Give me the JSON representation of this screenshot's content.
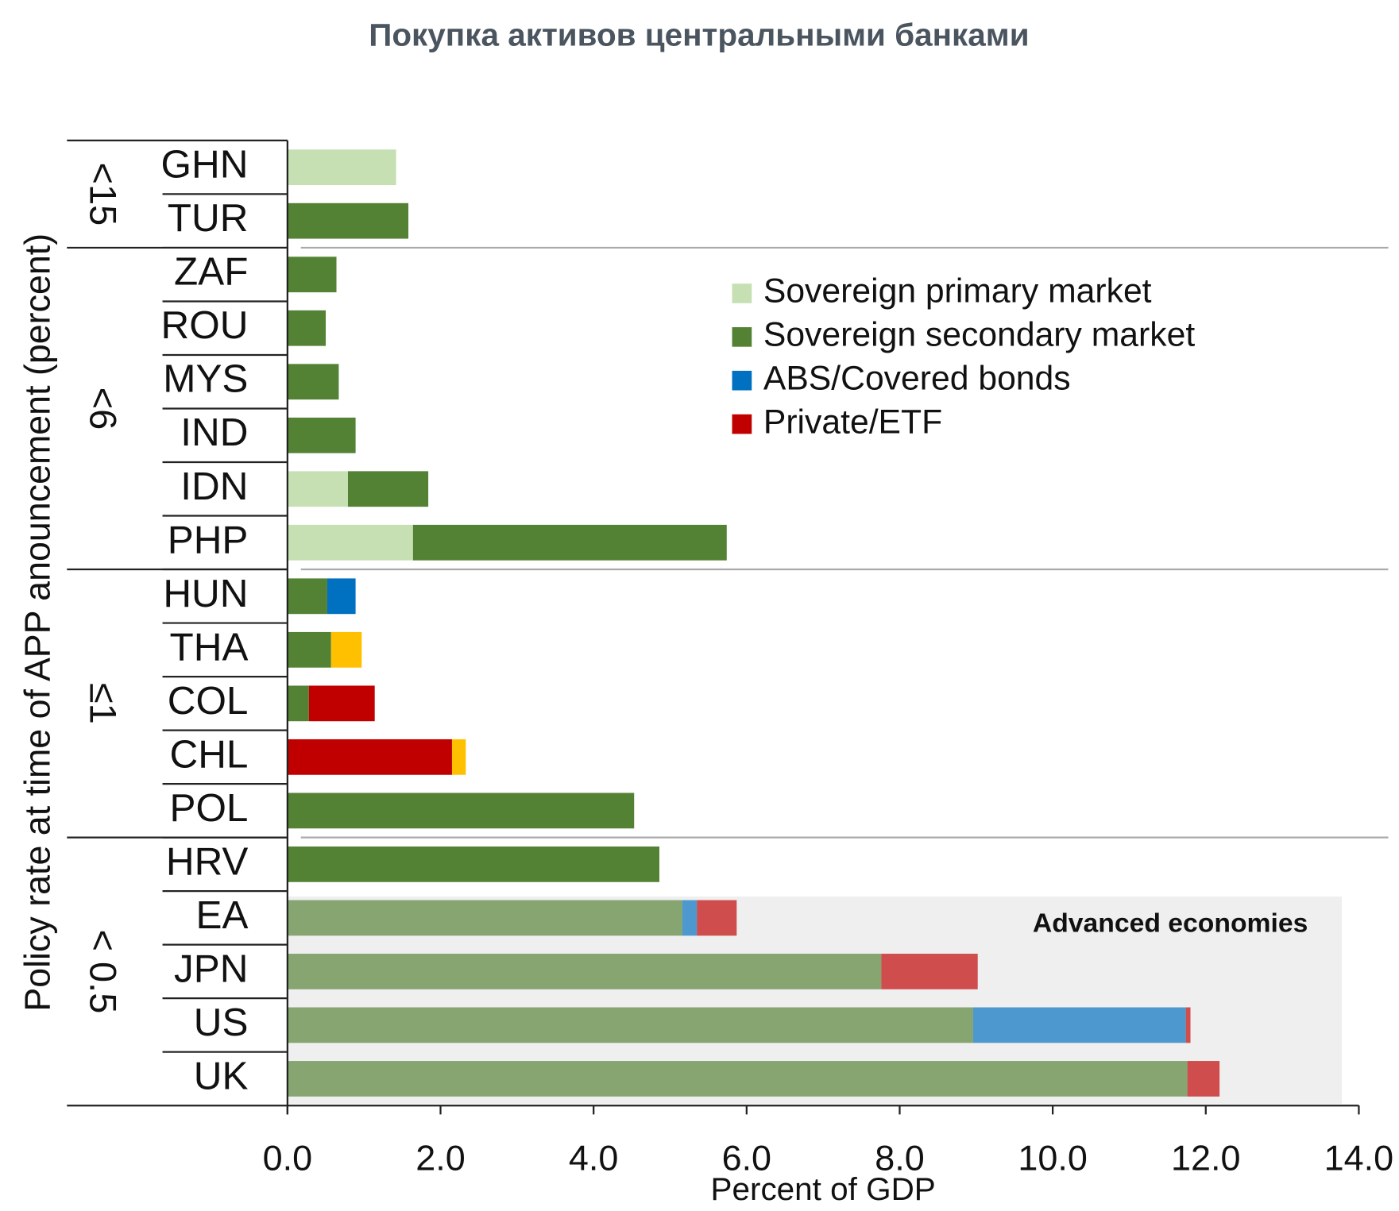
{
  "chart_data": {
    "type": "stacked_barh",
    "title": "Покупка активов центральными банками",
    "xlabel": "Percent of GDP",
    "ylabel": "Policy rate at time of APP anouncement (percent)",
    "annotation": "Advanced economies",
    "shaded_from_index": 14,
    "categories": [
      "GHN",
      "TUR",
      "ZAF",
      "ROU",
      "MYS",
      "IND",
      "IDN",
      "PHP",
      "HUN",
      "THA",
      "COL",
      "CHL",
      "POL",
      "HRV",
      "EA",
      "JPN",
      "US",
      "UK"
    ],
    "groups": [
      {
        "label": "<15",
        "count": 2
      },
      {
        "label": "<6",
        "count": 6
      },
      {
        "label": "≤1",
        "count": 5
      },
      {
        "label": "< 0.5",
        "count": 5
      }
    ],
    "series": [
      {
        "name": "Sovereign primary market",
        "color": "#c6e0b4",
        "values": [
          1.42,
          0,
          0,
          0,
          0,
          0,
          0.79,
          1.64,
          0,
          0,
          0,
          0,
          0,
          0,
          0,
          0,
          0,
          0
        ]
      },
      {
        "name": "Sovereign secondary market",
        "color": "#548235",
        "values": [
          0,
          1.58,
          0.64,
          0.5,
          0.67,
          0.89,
          1.05,
          4.1,
          0.52,
          0.57,
          0.28,
          0,
          4.53,
          4.86,
          5.16,
          7.76,
          8.96,
          11.76
        ]
      },
      {
        "name": "ABS/Covered bonds",
        "color": "#0070c0",
        "values": [
          0,
          0,
          0,
          0,
          0,
          0,
          0,
          0,
          0.37,
          0,
          0,
          0,
          0,
          0,
          0.19,
          0,
          2.78,
          0
        ]
      },
      {
        "name": "Private/ETF",
        "color": "#c00000",
        "values": [
          0,
          0,
          0,
          0,
          0,
          0,
          0,
          0,
          0,
          0,
          0.86,
          2.15,
          0,
          0,
          0.52,
          1.26,
          0.06,
          0.42
        ]
      },
      {
        "name": null,
        "color": "#ffc000",
        "values": [
          0,
          0,
          0,
          0,
          0,
          0,
          0,
          0,
          0,
          0.4,
          0,
          0.18,
          0,
          0,
          0,
          0,
          0,
          0
        ]
      }
    ],
    "xlim": [
      0,
      14
    ],
    "xticks": [
      {
        "value": 0,
        "label": "0.0"
      },
      {
        "value": 2,
        "label": "2.0"
      },
      {
        "value": 4,
        "label": "4.0"
      },
      {
        "value": 6,
        "label": "6.0"
      },
      {
        "value": 8,
        "label": "8.0"
      },
      {
        "value": 10,
        "label": "10.0"
      },
      {
        "value": 12,
        "label": "12.0"
      },
      {
        "value": 14,
        "label": "14.0"
      }
    ],
    "legend": "upper right"
  }
}
